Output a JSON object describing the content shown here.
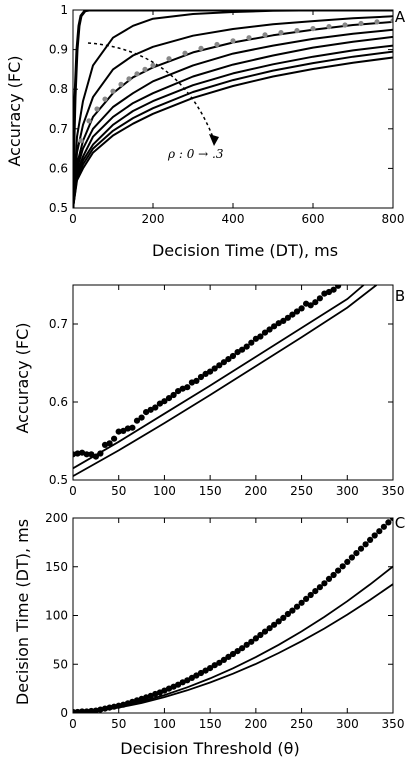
{
  "figure": {
    "panel_labels": [
      "A",
      "B",
      "C"
    ],
    "annotation": "ρ : 0 → .3"
  },
  "chart_data": [
    {
      "panel": "A",
      "type": "line",
      "xlabel": "Decision Time (DT), ms",
      "ylabel": "Accuracy (FC)",
      "xlim": [
        0,
        800
      ],
      "ylim": [
        0.5,
        1.0
      ],
      "xticks": [
        0,
        200,
        400,
        600,
        800
      ],
      "yticks": [
        0.5,
        0.6,
        0.7,
        0.8,
        0.9,
        1.0
      ],
      "annotation": "ρ : 0 → .3",
      "series": [
        {
          "x": [
            0,
            2,
            5,
            10,
            15,
            20,
            30,
            40,
            60,
            80,
            100,
            800
          ],
          "values": [
            0.5,
            0.66,
            0.78,
            0.9,
            0.96,
            0.985,
            0.998,
            1.0,
            1.0,
            1.0,
            1.0,
            1.0
          ],
          "color": "#000000",
          "width": 3
        },
        {
          "x": [
            0,
            10,
            25,
            50,
            100,
            150,
            200,
            300,
            400,
            500,
            600,
            700,
            800
          ],
          "values": [
            0.5,
            0.68,
            0.77,
            0.86,
            0.93,
            0.96,
            0.978,
            0.99,
            0.995,
            0.998,
            0.999,
            1.0,
            1.0
          ],
          "color": "#000000",
          "width": 2
        },
        {
          "x": [
            0,
            10,
            25,
            50,
            100,
            150,
            200,
            300,
            400,
            500,
            600,
            700,
            800
          ],
          "values": [
            0.5,
            0.64,
            0.71,
            0.78,
            0.85,
            0.885,
            0.907,
            0.935,
            0.952,
            0.964,
            0.972,
            0.979,
            0.984
          ],
          "color": "#000000",
          "width": 2
        },
        {
          "x": [
            0,
            10,
            25,
            50,
            100,
            150,
            200,
            300,
            400,
            500,
            600,
            700,
            800
          ],
          "values": [
            0.5,
            0.61,
            0.67,
            0.73,
            0.79,
            0.83,
            0.855,
            0.893,
            0.918,
            0.936,
            0.95,
            0.962,
            0.97
          ],
          "color": "#000000",
          "width": 2
        },
        {
          "x": [
            0,
            10,
            25,
            50,
            100,
            150,
            200,
            300,
            400,
            500,
            600,
            700,
            800
          ],
          "values": [
            0.5,
            0.6,
            0.65,
            0.7,
            0.755,
            0.79,
            0.82,
            0.86,
            0.89,
            0.91,
            0.927,
            0.94,
            0.95
          ],
          "color": "#000000",
          "width": 2
        },
        {
          "x": [
            0,
            10,
            25,
            50,
            100,
            150,
            200,
            300,
            400,
            500,
            600,
            700,
            800
          ],
          "values": [
            0.5,
            0.59,
            0.63,
            0.68,
            0.73,
            0.765,
            0.79,
            0.832,
            0.862,
            0.885,
            0.905,
            0.92,
            0.932
          ],
          "color": "#000000",
          "width": 2
        },
        {
          "x": [
            0,
            10,
            25,
            50,
            100,
            150,
            200,
            300,
            400,
            500,
            600,
            700,
            800
          ],
          "values": [
            0.5,
            0.58,
            0.62,
            0.66,
            0.71,
            0.745,
            0.77,
            0.81,
            0.84,
            0.863,
            0.882,
            0.898,
            0.91
          ],
          "color": "#000000",
          "width": 2
        },
        {
          "x": [
            0,
            10,
            25,
            50,
            100,
            150,
            200,
            300,
            400,
            500,
            600,
            700,
            800
          ],
          "values": [
            0.5,
            0.575,
            0.61,
            0.65,
            0.695,
            0.727,
            0.752,
            0.793,
            0.823,
            0.847,
            0.866,
            0.882,
            0.895
          ],
          "color": "#000000",
          "width": 2
        },
        {
          "x": [
            0,
            10,
            25,
            50,
            100,
            150,
            200,
            300,
            400,
            500,
            600,
            700,
            800
          ],
          "values": [
            0.5,
            0.57,
            0.6,
            0.64,
            0.683,
            0.713,
            0.738,
            0.778,
            0.808,
            0.832,
            0.851,
            0.867,
            0.88
          ],
          "color": "#000000",
          "width": 2
        }
      ],
      "points": {
        "x": [
          20,
          40,
          60,
          80,
          100,
          120,
          140,
          160,
          180,
          200,
          240,
          280,
          320,
          360,
          400,
          440,
          480,
          520,
          560,
          600,
          640,
          680,
          720,
          760,
          800
        ],
        "values": [
          0.67,
          0.72,
          0.75,
          0.775,
          0.795,
          0.812,
          0.826,
          0.839,
          0.85,
          0.86,
          0.877,
          0.891,
          0.903,
          0.913,
          0.922,
          0.93,
          0.937,
          0.943,
          0.948,
          0.953,
          0.958,
          0.962,
          0.966,
          0.97,
          0.973
        ],
        "color": "#888888"
      }
    },
    {
      "panel": "B",
      "type": "scatter",
      "xlabel": "",
      "ylabel": "Accuracy (FC)",
      "xlim": [
        0,
        350
      ],
      "ylim": [
        0.5,
        0.75
      ],
      "xticks": [
        0,
        50,
        100,
        150,
        200,
        250,
        300,
        350
      ],
      "yticks": [
        0.5,
        0.6,
        0.7
      ],
      "lines": [
        {
          "x": [
            0,
            50,
            100,
            150,
            200,
            250,
            300,
            318
          ],
          "values": [
            0.515,
            0.549,
            0.585,
            0.621,
            0.658,
            0.695,
            0.732,
            0.75
          ]
        },
        {
          "x": [
            0,
            50,
            100,
            150,
            200,
            250,
            300,
            332
          ],
          "values": [
            0.505,
            0.538,
            0.573,
            0.609,
            0.646,
            0.683,
            0.721,
            0.75
          ]
        }
      ],
      "points": {
        "x": [
          0,
          5,
          10,
          15,
          20,
          25,
          30,
          35,
          40,
          45,
          50,
          55,
          60,
          65,
          70,
          75,
          80,
          85,
          90,
          95,
          100,
          105,
          110,
          115,
          120,
          125,
          130,
          135,
          140,
          145,
          150,
          155,
          160,
          165,
          170,
          175,
          180,
          185,
          190,
          195,
          200,
          205,
          210,
          215,
          220,
          225,
          230,
          235,
          240,
          245,
          250,
          255,
          260,
          265,
          270,
          275,
          280,
          285,
          290
        ],
        "values": [
          0.533,
          0.534,
          0.535,
          0.533,
          0.533,
          0.53,
          0.534,
          0.545,
          0.547,
          0.553,
          0.562,
          0.563,
          0.566,
          0.567,
          0.576,
          0.58,
          0.587,
          0.59,
          0.593,
          0.598,
          0.601,
          0.605,
          0.609,
          0.614,
          0.617,
          0.619,
          0.625,
          0.627,
          0.632,
          0.636,
          0.639,
          0.643,
          0.647,
          0.651,
          0.655,
          0.659,
          0.664,
          0.667,
          0.671,
          0.676,
          0.681,
          0.684,
          0.689,
          0.693,
          0.697,
          0.701,
          0.704,
          0.708,
          0.712,
          0.716,
          0.72,
          0.726,
          0.724,
          0.728,
          0.733,
          0.739,
          0.741,
          0.744,
          0.749
        ],
        "color": "#000000"
      }
    },
    {
      "panel": "C",
      "type": "scatter",
      "xlabel": "Decision Threshold (θ)",
      "ylabel": "Decision Time (DT), ms",
      "xlim": [
        0,
        350
      ],
      "ylim": [
        0,
        200
      ],
      "xticks": [
        0,
        50,
        100,
        150,
        200,
        250,
        300,
        350
      ],
      "yticks": [
        0,
        50,
        100,
        150,
        200
      ],
      "lines": [
        {
          "x": [
            0,
            25,
            50,
            75,
            100,
            125,
            150,
            175,
            200,
            225,
            250,
            275,
            300,
            325,
            350
          ],
          "values": [
            0,
            1.9,
            5.5,
            10.3,
            16.3,
            23.3,
            31.3,
            40.3,
            50.4,
            61.5,
            73.6,
            86.7,
            100.9,
            116,
            132.2
          ]
        },
        {
          "x": [
            0,
            25,
            50,
            75,
            100,
            125,
            150,
            175,
            200,
            225,
            250,
            275,
            300,
            325,
            350
          ],
          "values": [
            0,
            2.1,
            6.2,
            11.6,
            18.4,
            26.4,
            35.5,
            45.8,
            57.3,
            69.9,
            83.7,
            98.6,
            114.7,
            131.9,
            150.3
          ]
        }
      ],
      "points": {
        "x": [
          0,
          5,
          10,
          15,
          20,
          25,
          30,
          35,
          40,
          45,
          50,
          55,
          60,
          65,
          70,
          75,
          80,
          85,
          90,
          95,
          100,
          105,
          110,
          115,
          120,
          125,
          130,
          135,
          140,
          145,
          150,
          155,
          160,
          165,
          170,
          175,
          180,
          185,
          190,
          195,
          200,
          205,
          210,
          215,
          220,
          225,
          230,
          235,
          240,
          245,
          250,
          255,
          260,
          265,
          270,
          275,
          280,
          285,
          290,
          295,
          300,
          305,
          310,
          315,
          320,
          325,
          330,
          335,
          340,
          345,
          350
        ],
        "values": [
          1,
          1,
          1.5,
          1.5,
          2,
          2.5,
          3.5,
          4.5,
          5.5,
          6.5,
          7.5,
          8.5,
          10,
          11.5,
          13,
          14.5,
          16,
          17.5,
          19.5,
          21,
          23,
          25,
          27,
          29,
          31.5,
          33.5,
          36,
          38.5,
          41,
          43.5,
          46,
          49,
          51.5,
          54.5,
          57.5,
          60.5,
          63.5,
          66.5,
          70,
          73,
          76.5,
          80,
          83.5,
          87,
          90.5,
          94,
          97.5,
          101.5,
          105,
          109,
          113,
          117,
          121,
          125,
          129,
          133,
          137.5,
          141.5,
          146,
          150.5,
          155,
          159.5,
          164,
          168.5,
          173,
          177.5,
          182,
          186.5,
          191,
          195.5,
          200
        ],
        "color": "#000000"
      }
    }
  ]
}
